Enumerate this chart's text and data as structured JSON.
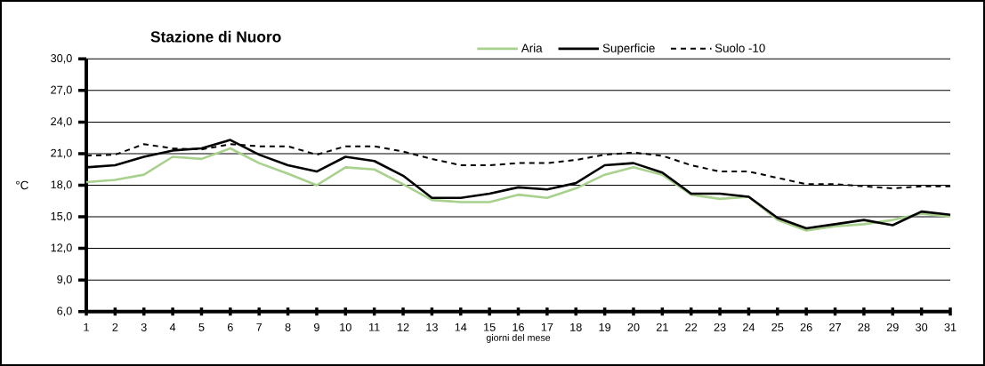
{
  "chart_data": {
    "type": "line",
    "title": "Stazione di Nuoro",
    "xlabel": "giorni del mese",
    "ylabel": "°C",
    "x": [
      1,
      2,
      3,
      4,
      5,
      6,
      7,
      8,
      9,
      10,
      11,
      12,
      13,
      14,
      15,
      16,
      17,
      18,
      19,
      20,
      21,
      22,
      23,
      24,
      25,
      26,
      27,
      28,
      29,
      30,
      31
    ],
    "series": [
      {
        "name": "Aria",
        "color": "#a9d18e",
        "line_style": "solid",
        "values": [
          18.3,
          18.5,
          19.0,
          20.7,
          20.5,
          21.5,
          20.1,
          19.1,
          18.0,
          19.7,
          19.5,
          18.1,
          16.6,
          16.4,
          16.4,
          17.1,
          16.8,
          17.7,
          19.0,
          19.7,
          19.0,
          17.1,
          16.7,
          16.9,
          14.7,
          13.7,
          14.1,
          14.3,
          14.7,
          15.3,
          15.0
        ]
      },
      {
        "name": "Superficie",
        "color": "#000000",
        "line_style": "solid",
        "values": [
          19.7,
          19.9,
          20.7,
          21.3,
          21.5,
          22.3,
          20.9,
          19.9,
          19.3,
          20.7,
          20.3,
          18.9,
          16.8,
          16.8,
          17.2,
          17.8,
          17.6,
          18.2,
          19.9,
          20.1,
          19.2,
          17.2,
          17.2,
          16.9,
          14.9,
          13.9,
          14.3,
          14.7,
          14.2,
          15.5,
          15.2
        ]
      },
      {
        "name": "Suolo -10",
        "color": "#000000",
        "line_style": "dashed",
        "values": [
          20.8,
          20.9,
          21.9,
          21.5,
          21.4,
          21.9,
          21.7,
          21.7,
          20.9,
          21.7,
          21.7,
          21.2,
          20.5,
          19.9,
          19.9,
          20.1,
          20.1,
          20.4,
          20.9,
          21.1,
          20.8,
          19.9,
          19.3,
          19.3,
          18.7,
          18.1,
          18.1,
          17.9,
          17.7,
          17.9,
          17.9
        ]
      }
    ],
    "xlim": [
      1,
      31
    ],
    "xticks": [
      1,
      2,
      3,
      4,
      5,
      6,
      7,
      8,
      9,
      10,
      11,
      12,
      13,
      14,
      15,
      16,
      17,
      18,
      19,
      20,
      21,
      22,
      23,
      24,
      25,
      26,
      27,
      28,
      29,
      30,
      31
    ],
    "ylim": [
      6,
      30
    ],
    "yticks": [
      {
        "value": 6,
        "label": "6,0"
      },
      {
        "value": 9,
        "label": "9,0"
      },
      {
        "value": 12,
        "label": "12,0"
      },
      {
        "value": 15,
        "label": "15,0"
      },
      {
        "value": 18,
        "label": "18,0"
      },
      {
        "value": 21,
        "label": "21,0"
      },
      {
        "value": 24,
        "label": "24,0"
      },
      {
        "value": 27,
        "label": "27,0"
      },
      {
        "value": 30,
        "label": "30,0"
      }
    ],
    "grid": "y",
    "legend": "top"
  }
}
